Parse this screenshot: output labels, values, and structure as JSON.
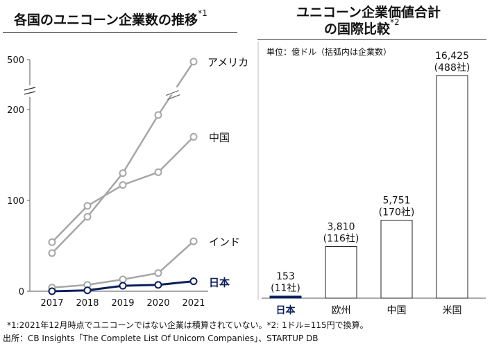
{
  "left_title": "各国のユニコーン企業数の推移",
  "left_title_note": "*1",
  "right_title_line1": "ユニコーン企業価値合計",
  "right_title_line2": "の国際比較",
  "right_title_note": "*2",
  "unit_label": "単位：億ドル（括弧内は企業数）",
  "footnote1": "*1:2021年12月時点でユニコーンではない企業は積算されていない。*2: 1ドル=115円で換算。",
  "footnote2": "出所：CB Insights「The Complete List Of Unicorn Companies」、STARTUP DB",
  "colors": {
    "grey_line": "#a6a6a6",
    "navy": "#0a1f5c",
    "axis": "#555555"
  },
  "chart_data": [
    {
      "type": "line",
      "title": "各国のユニコーン企業数の推移",
      "x": [
        "2017",
        "2018",
        "2019",
        "2020",
        "2021"
      ],
      "y_ticks": [
        0,
        100,
        200,
        500
      ],
      "y_axis_break": "200–500 (axis break)",
      "series": [
        {
          "name": "アメリカ",
          "values": [
            42,
            82,
            130,
            194,
            488
          ]
        },
        {
          "name": "中国",
          "values": [
            54,
            94,
            117,
            131,
            170
          ]
        },
        {
          "name": "インド",
          "values": [
            4,
            7,
            13,
            20,
            55
          ]
        },
        {
          "name": "日本",
          "values": [
            0,
            1,
            6,
            7,
            11
          ]
        }
      ]
    },
    {
      "type": "bar",
      "title": "ユニコーン企業価値合計の国際比較",
      "categories": [
        "日本",
        "欧州",
        "中国",
        "米国"
      ],
      "values": [
        153,
        3810,
        5751,
        16425
      ],
      "value_labels": [
        "153",
        "3,810",
        "5,751",
        "16,425"
      ],
      "count_labels": [
        "(11社)",
        "(116社)",
        "(170社)",
        "(488社)"
      ],
      "unit": "億ドル"
    }
  ]
}
